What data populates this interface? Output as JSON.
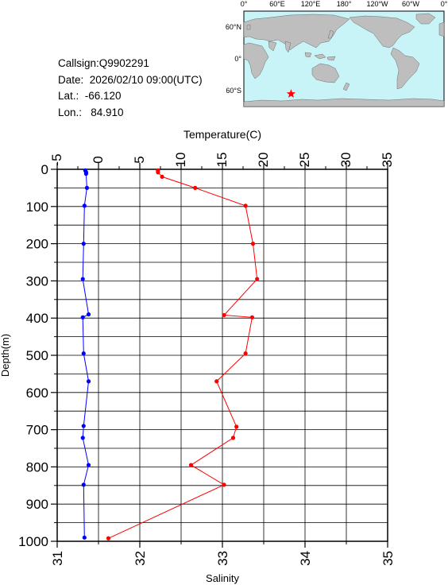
{
  "station": {
    "callsign": "Callsign:Q9902291",
    "date": "Date:  2026/02/10 09:00(UTC)",
    "lat": "Lat.:  -66.120",
    "lon": "Lon.:   84.910"
  },
  "map": {
    "lon_labels": [
      "0°",
      "60°E",
      "120°E",
      "180°",
      "120°W",
      "60°W",
      "0°"
    ],
    "lat_labels": [
      "60°N",
      "0°",
      "60°S"
    ],
    "marker": {
      "lon": 84.91,
      "lat": -66.12
    },
    "colors": {
      "ocean": "#c8f4f8",
      "land": "#bebebe",
      "marker": "#ff0000"
    }
  },
  "chart_data": {
    "type": "line",
    "ylabel": "Depth(m)",
    "ylim": [
      1000,
      0
    ],
    "yticks": [
      0,
      100,
      200,
      300,
      400,
      500,
      600,
      700,
      800,
      900,
      1000
    ],
    "top_axis": {
      "label": "Temperature(C)",
      "range": [
        -5,
        35
      ],
      "ticks": [
        -5,
        0,
        5,
        10,
        15,
        20,
        25,
        30,
        35
      ]
    },
    "bottom_axis": {
      "label": "Salinity",
      "range": [
        31,
        35
      ],
      "ticks": [
        31,
        32,
        33,
        34,
        35
      ]
    },
    "grid": true,
    "series": [
      {
        "axis": "top",
        "color": "#0000ff",
        "points": [
          [
            -1.6,
            3
          ],
          [
            -1.5,
            8
          ],
          [
            -1.5,
            12
          ],
          [
            -1.4,
            50
          ],
          [
            -1.7,
            98
          ],
          [
            -1.8,
            200
          ],
          [
            -1.9,
            295
          ],
          [
            -1.2,
            390
          ],
          [
            -1.9,
            398
          ],
          [
            -1.8,
            495
          ],
          [
            -1.2,
            570
          ],
          [
            -1.8,
            690
          ],
          [
            -1.9,
            722
          ],
          [
            -1.2,
            795
          ],
          [
            -1.8,
            848
          ],
          [
            -1.7,
            990
          ]
        ]
      },
      {
        "axis": "bottom",
        "color": "#ff0000",
        "points": [
          [
            32.22,
            3
          ],
          [
            32.22,
            8
          ],
          [
            32.27,
            20
          ],
          [
            32.67,
            50
          ],
          [
            33.28,
            98
          ],
          [
            33.37,
            200
          ],
          [
            33.42,
            295
          ],
          [
            33.02,
            392
          ],
          [
            33.36,
            398
          ],
          [
            33.28,
            495
          ],
          [
            32.93,
            570
          ],
          [
            33.17,
            692
          ],
          [
            33.13,
            722
          ],
          [
            32.62,
            795
          ],
          [
            33.02,
            848
          ],
          [
            31.62,
            992
          ]
        ]
      }
    ]
  }
}
